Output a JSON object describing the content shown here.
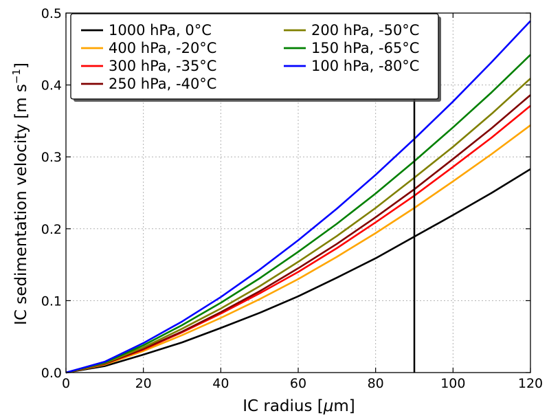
{
  "chart_data": {
    "type": "line",
    "xlabel_prefix": "IC radius [",
    "xlabel_unit_symbol": "μ",
    "xlabel_suffix": "m]",
    "ylabel_main": "IC sedimentation velocity [m s",
    "ylabel_sup": "−1",
    "ylabel_end": "]",
    "xlim": [
      0,
      120
    ],
    "ylim": [
      0,
      0.5
    ],
    "xticks": [
      0,
      20,
      40,
      60,
      80,
      100,
      120
    ],
    "xtick_labels": [
      "0",
      "20",
      "40",
      "60",
      "80",
      "100",
      "120"
    ],
    "yticks": [
      0,
      0.1,
      0.2,
      0.3,
      0.4,
      0.5
    ],
    "ytick_labels": [
      "0.0",
      "0.1",
      "0.2",
      "0.3",
      "0.4",
      "0.5"
    ],
    "grid": true,
    "legend_position": "top-left",
    "vertical_line_x": 90,
    "x": [
      0,
      10,
      20,
      30,
      40,
      50,
      60,
      70,
      80,
      90,
      100,
      110,
      120
    ],
    "series": [
      {
        "name": "1000 hPa, 0°C",
        "color": "#000000",
        "values": [
          0,
          0.009,
          0.025,
          0.042,
          0.062,
          0.083,
          0.106,
          0.132,
          0.159,
          0.189,
          0.219,
          0.25,
          0.283
        ]
      },
      {
        "name": "400 hPa, -20°C",
        "color": "#ffa500",
        "values": [
          0,
          0.011,
          0.03,
          0.052,
          0.076,
          0.102,
          0.13,
          0.161,
          0.194,
          0.229,
          0.266,
          0.304,
          0.344
        ]
      },
      {
        "name": "300 hPa, -35°C",
        "color": "#ff0000",
        "values": [
          0,
          0.012,
          0.032,
          0.056,
          0.082,
          0.11,
          0.14,
          0.173,
          0.209,
          0.246,
          0.286,
          0.327,
          0.371
        ]
      },
      {
        "name": "250 hPa, -40°C",
        "color": "#800000",
        "values": [
          0,
          0.012,
          0.033,
          0.057,
          0.084,
          0.113,
          0.145,
          0.179,
          0.216,
          0.255,
          0.297,
          0.34,
          0.386
        ]
      },
      {
        "name": "200 hPa, -50°C",
        "color": "#808000",
        "values": [
          0,
          0.013,
          0.035,
          0.061,
          0.089,
          0.12,
          0.154,
          0.19,
          0.229,
          0.271,
          0.314,
          0.36,
          0.409
        ]
      },
      {
        "name": "150 hPa, -65°C",
        "color": "#008000",
        "values": [
          0,
          0.014,
          0.038,
          0.066,
          0.097,
          0.131,
          0.168,
          0.207,
          0.249,
          0.294,
          0.341,
          0.39,
          0.442
        ]
      },
      {
        "name": "100 hPa, -80°C",
        "color": "#0000ff",
        "values": [
          0,
          0.015,
          0.041,
          0.071,
          0.105,
          0.143,
          0.184,
          0.228,
          0.275,
          0.325,
          0.377,
          0.432,
          0.489
        ]
      }
    ]
  }
}
